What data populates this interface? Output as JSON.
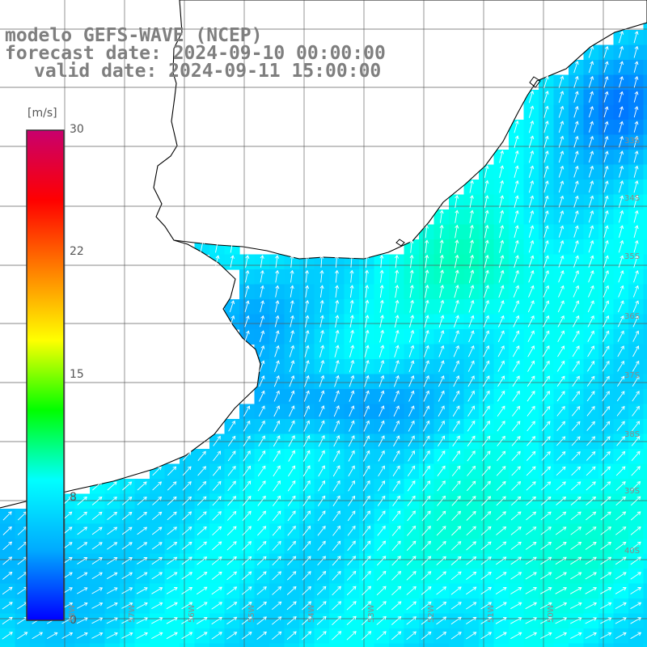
{
  "titles": {
    "line1": "modelo GEFS-WAVE (NCEP)",
    "line2": "forecast date: 2024-09-10 00:00:00",
    "line3": "valid date: 2024-09-11 15:00:00"
  },
  "colorbar": {
    "unit": "[m/s]",
    "ticks": [
      "30",
      "22",
      "15",
      "8",
      "0"
    ],
    "tick_values": [
      30,
      22,
      15,
      8,
      0
    ],
    "min": 0,
    "max": 30,
    "colors": [
      "#0000ff",
      "#00aaff",
      "#00ffff",
      "#00ff00",
      "#ffff00",
      "#ff8000",
      "#ff0000",
      "#c8006e"
    ]
  },
  "graticule": {
    "lat_labels": [
      "33S",
      "34S",
      "35S",
      "36S",
      "37S",
      "38S",
      "39S",
      "40S"
    ],
    "lon_labels": [
      "58W",
      "57W",
      "56W",
      "55W",
      "54W",
      "53W",
      "52W",
      "51W",
      "50W"
    ]
  },
  "colors": {
    "land": "#ffffff",
    "coast": "#000000",
    "grid": "#555555",
    "arrow": "#ffffff",
    "title": "#7f7f7f"
  }
}
